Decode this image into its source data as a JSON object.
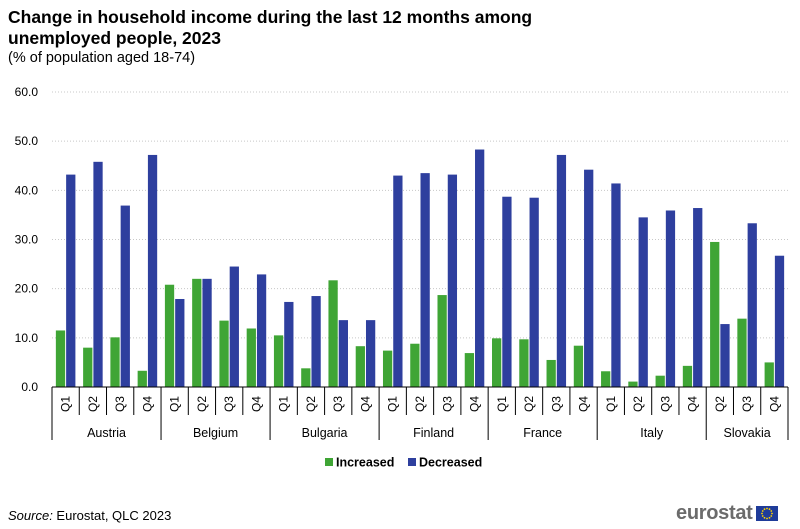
{
  "header": {
    "title": "Change in household income during the last 12 months among unemployed people, 2023",
    "subtitle": "(% of population aged 18-74)"
  },
  "footer": {
    "source_label": "Source:",
    "source_text": " Eurostat, QLC 2023",
    "logo_text": "eurostat"
  },
  "colors": {
    "increased": "#3fa535",
    "decreased": "#2e3f9e",
    "grid": "#c8c8c8"
  },
  "chart_data": {
    "type": "bar",
    "title": "Change in household income during the last 12 months among unemployed people, 2023",
    "subtitle": "(% of population aged 18-74)",
    "ylim": [
      0,
      60
    ],
    "yticks": [
      "0.0",
      "10.0",
      "20.0",
      "30.0",
      "40.0",
      "50.0",
      "60.0"
    ],
    "grid": true,
    "legend_position": "bottom",
    "groups": [
      {
        "name": "Austria",
        "quarters": [
          "Q1",
          "Q2",
          "Q3",
          "Q4"
        ]
      },
      {
        "name": "Belgium",
        "quarters": [
          "Q1",
          "Q2",
          "Q3",
          "Q4"
        ]
      },
      {
        "name": "Bulgaria",
        "quarters": [
          "Q1",
          "Q2",
          "Q3",
          "Q4"
        ]
      },
      {
        "name": "Finland",
        "quarters": [
          "Q1",
          "Q2",
          "Q3",
          "Q4"
        ]
      },
      {
        "name": "France",
        "quarters": [
          "Q1",
          "Q2",
          "Q3",
          "Q4"
        ]
      },
      {
        "name": "Italy",
        "quarters": [
          "Q1",
          "Q2",
          "Q3",
          "Q4"
        ]
      },
      {
        "name": "Slovakia",
        "quarters": [
          "Q2",
          "Q3",
          "Q4"
        ]
      }
    ],
    "series": [
      {
        "name": "Increased",
        "values": [
          11.5,
          8.0,
          10.1,
          3.3,
          20.8,
          22.0,
          13.5,
          11.9,
          10.5,
          3.8,
          21.7,
          8.3,
          7.4,
          8.8,
          18.7,
          6.9,
          9.9,
          9.7,
          5.5,
          8.4,
          3.2,
          1.1,
          2.3,
          4.3,
          29.5,
          13.9,
          5.0
        ]
      },
      {
        "name": "Decreased",
        "values": [
          43.2,
          45.8,
          36.9,
          47.2,
          17.9,
          22.0,
          24.5,
          22.9,
          17.3,
          18.5,
          13.6,
          13.6,
          43.0,
          43.5,
          43.2,
          48.3,
          38.7,
          38.5,
          47.2,
          44.2,
          41.4,
          34.5,
          35.9,
          36.4,
          12.8,
          33.3,
          26.7
        ]
      }
    ]
  }
}
